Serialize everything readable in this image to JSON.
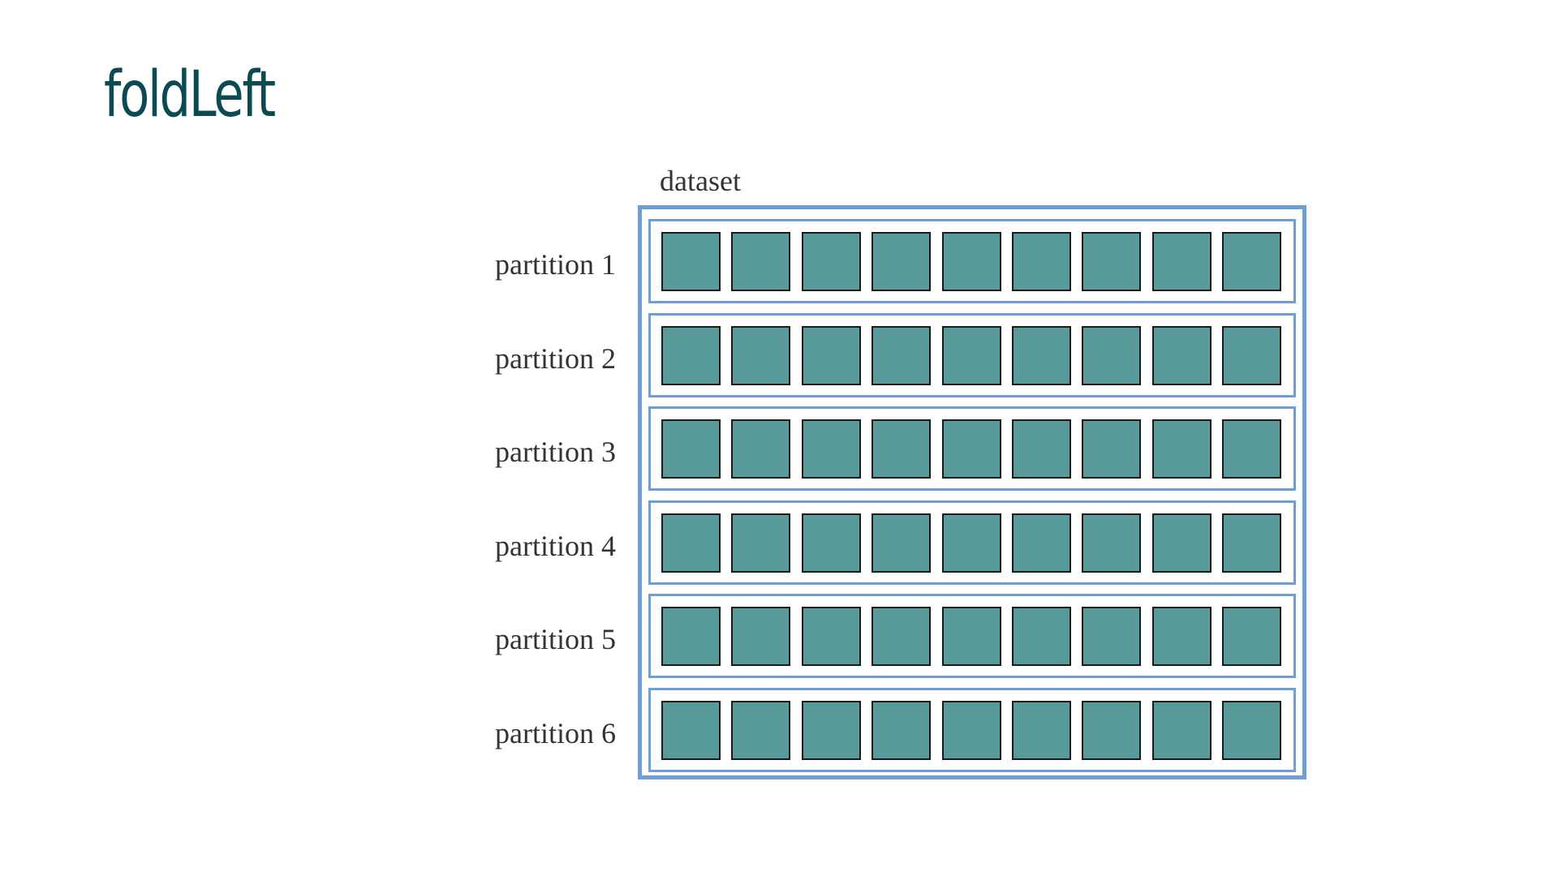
{
  "title": "foldLeft",
  "dataset": {
    "label": "dataset",
    "records_per_partition": 9,
    "partitions": [
      {
        "label": "partition 1"
      },
      {
        "label": "partition 2"
      },
      {
        "label": "partition 3"
      },
      {
        "label": "partition 4"
      },
      {
        "label": "partition 5"
      },
      {
        "label": "partition 6"
      }
    ]
  },
  "colors": {
    "title": "#0b4a52",
    "border": "#6d9fd5",
    "record_fill": "#589b9a",
    "record_border": "#1a1a1a",
    "label_text": "#333333"
  }
}
